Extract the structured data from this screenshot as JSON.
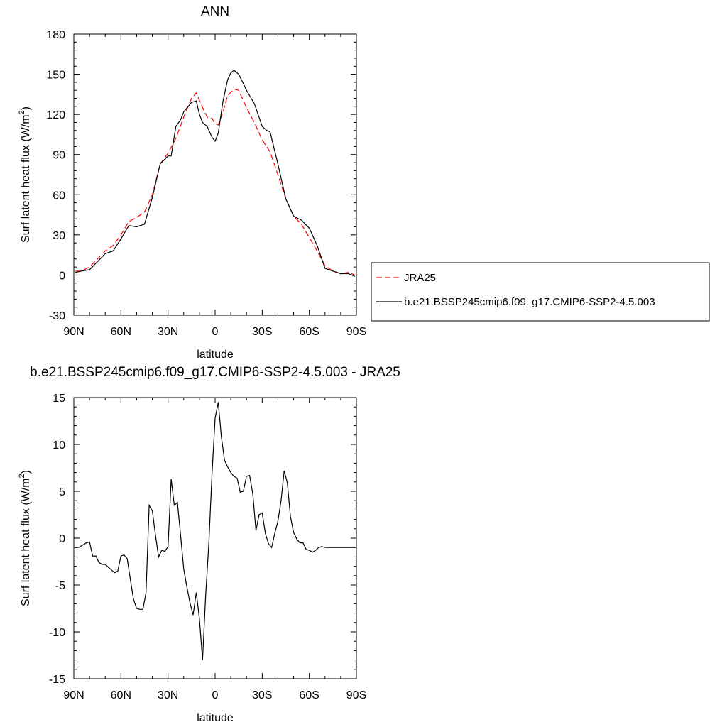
{
  "chart_data": [
    {
      "type": "line",
      "title": "ANN",
      "xlabel": "latitude",
      "ylabel": "Surf latent heat flux (W/m",
      "ylabel_sup": "2",
      "ylabel_end": ")",
      "xlim": [
        90,
        -90
      ],
      "ylim": [
        -30,
        180
      ],
      "xticks": [
        90,
        60,
        30,
        0,
        -30,
        -60,
        -90
      ],
      "xticklabels": [
        "90N",
        "60N",
        "30N",
        "0",
        "30S",
        "60S",
        "90S"
      ],
      "yticks": [
        -30,
        0,
        30,
        60,
        90,
        120,
        150,
        180
      ],
      "yticklabels": [
        "-30",
        "0",
        "30",
        "60",
        "90",
        "120",
        "150",
        "180"
      ],
      "legend_position": "right",
      "series": [
        {
          "name": "JRA25",
          "color": "#ff0000",
          "dash": "dashed",
          "x": [
            89,
            85,
            80,
            75,
            70,
            65,
            60,
            55,
            50,
            45,
            40,
            35,
            30,
            25,
            20,
            15,
            12,
            8,
            5,
            2,
            0,
            -2,
            -5,
            -8,
            -12,
            -15,
            -20,
            -25,
            -30,
            -35,
            -40,
            -45,
            -50,
            -55,
            -60,
            -65,
            -70,
            -75,
            -80,
            -85,
            -89
          ],
          "y": [
            3,
            3,
            6,
            12,
            18,
            22,
            30,
            40,
            43,
            47,
            60,
            83,
            91,
            102,
            118,
            132,
            136,
            125,
            118,
            117,
            113,
            112,
            122,
            134,
            139,
            138,
            125,
            114,
            101,
            92,
            75,
            57,
            44,
            38,
            28,
            18,
            7,
            3,
            1,
            2,
            0
          ]
        },
        {
          "name": "b.e21.BSSP245cmip6.f09_g17.CMIP6-SSP2-4.5.003",
          "color": "#000000",
          "dash": "solid",
          "x": [
            89,
            85,
            80,
            75,
            70,
            65,
            60,
            55,
            50,
            45,
            40,
            35,
            30,
            28,
            25,
            22,
            20,
            17,
            15,
            12,
            10,
            8,
            5,
            2,
            0,
            -2,
            -5,
            -8,
            -10,
            -12,
            -15,
            -18,
            -20,
            -25,
            -30,
            -33,
            -35,
            -40,
            -45,
            -50,
            -55,
            -60,
            -65,
            -70,
            -75,
            -80,
            -85,
            -89
          ],
          "y": [
            2,
            3,
            4,
            10,
            16,
            18,
            27,
            37,
            36,
            38,
            58,
            83,
            89,
            89,
            111,
            116,
            122,
            126,
            129,
            130,
            120,
            114,
            111,
            103,
            100,
            106,
            130,
            146,
            151,
            153,
            150,
            143,
            138,
            128,
            111,
            108,
            107,
            83,
            57,
            44,
            41,
            35,
            22,
            5,
            3,
            1,
            1,
            -1
          ]
        }
      ]
    },
    {
      "type": "line",
      "title": "b.e21.BSSP245cmip6.f09_g17.CMIP6-SSP2-4.5.003 - JRA25",
      "xlabel": "latitude",
      "ylabel": "Surf latent heat flux (W/m",
      "ylabel_sup": "2",
      "ylabel_end": ")",
      "xlim": [
        90,
        -90
      ],
      "ylim": [
        -15,
        15
      ],
      "xticks": [
        90,
        60,
        30,
        0,
        -30,
        -60,
        -90
      ],
      "xticklabels": [
        "90N",
        "60N",
        "30N",
        "0",
        "30S",
        "60S",
        "90S"
      ],
      "yticks": [
        -15,
        -10,
        -5,
        0,
        5,
        10,
        15
      ],
      "yticklabels": [
        "-15",
        "-10",
        "-5",
        "0",
        "5",
        "10",
        "15"
      ],
      "series": [
        {
          "color": "#000000",
          "dash": "solid",
          "x": [
            89,
            87,
            85,
            82,
            80,
            78,
            76,
            74,
            72,
            70,
            68,
            66,
            64,
            62,
            60,
            58,
            56,
            54,
            52,
            50,
            48,
            46,
            44,
            42,
            40,
            38,
            36,
            34,
            32,
            30,
            28,
            26,
            24,
            22,
            20,
            18,
            16,
            14,
            12,
            10,
            8,
            6,
            4,
            2,
            0,
            -2,
            -4,
            -6,
            -8,
            -10,
            -12,
            -14,
            -16,
            -18,
            -20,
            -22,
            -24,
            -26,
            -28,
            -30,
            -32,
            -34,
            -36,
            -38,
            -40,
            -42,
            -44,
            -46,
            -48,
            -50,
            -52,
            -54,
            -56,
            -58,
            -60,
            -62,
            -64,
            -66,
            -68,
            -70,
            -72,
            -74,
            -76,
            -78,
            -80,
            -82,
            -84,
            -86,
            -88,
            -90
          ],
          "y": [
            -1.0,
            -1.0,
            -0.8,
            -0.5,
            -0.4,
            -1.9,
            -1.9,
            -2.6,
            -2.8,
            -2.8,
            -3.1,
            -3.4,
            -3.7,
            -3.5,
            -1.9,
            -1.8,
            -2.2,
            -4.4,
            -6.5,
            -7.5,
            -7.6,
            -7.6,
            -5.8,
            3.5,
            2.9,
            0.3,
            -2.0,
            -1.3,
            -1.4,
            -0.9,
            6.3,
            3.5,
            3.8,
            0.3,
            -3.3,
            -5.2,
            -6.9,
            -8.2,
            -5.8,
            -8.6,
            -13.0,
            -6.1,
            -0.5,
            6.8,
            12.8,
            14.5,
            10.8,
            8.3,
            7.6,
            7.0,
            6.6,
            6.4,
            4.9,
            5.0,
            6.6,
            6.7,
            4.7,
            0.8,
            2.5,
            2.7,
            0.5,
            -0.6,
            -1.0,
            0.5,
            1.8,
            4.0,
            7.2,
            5.9,
            2.3,
            0.6,
            -0.1,
            -0.5,
            -0.5,
            -1.2,
            -1.3,
            -1.5,
            -1.3,
            -1.0,
            -0.9,
            -1.0,
            -1.0,
            -1.0,
            -1.0,
            -1.0,
            -1.0,
            -1.0,
            -1.0,
            -1.0,
            -1.0,
            -1.0
          ]
        }
      ]
    }
  ]
}
